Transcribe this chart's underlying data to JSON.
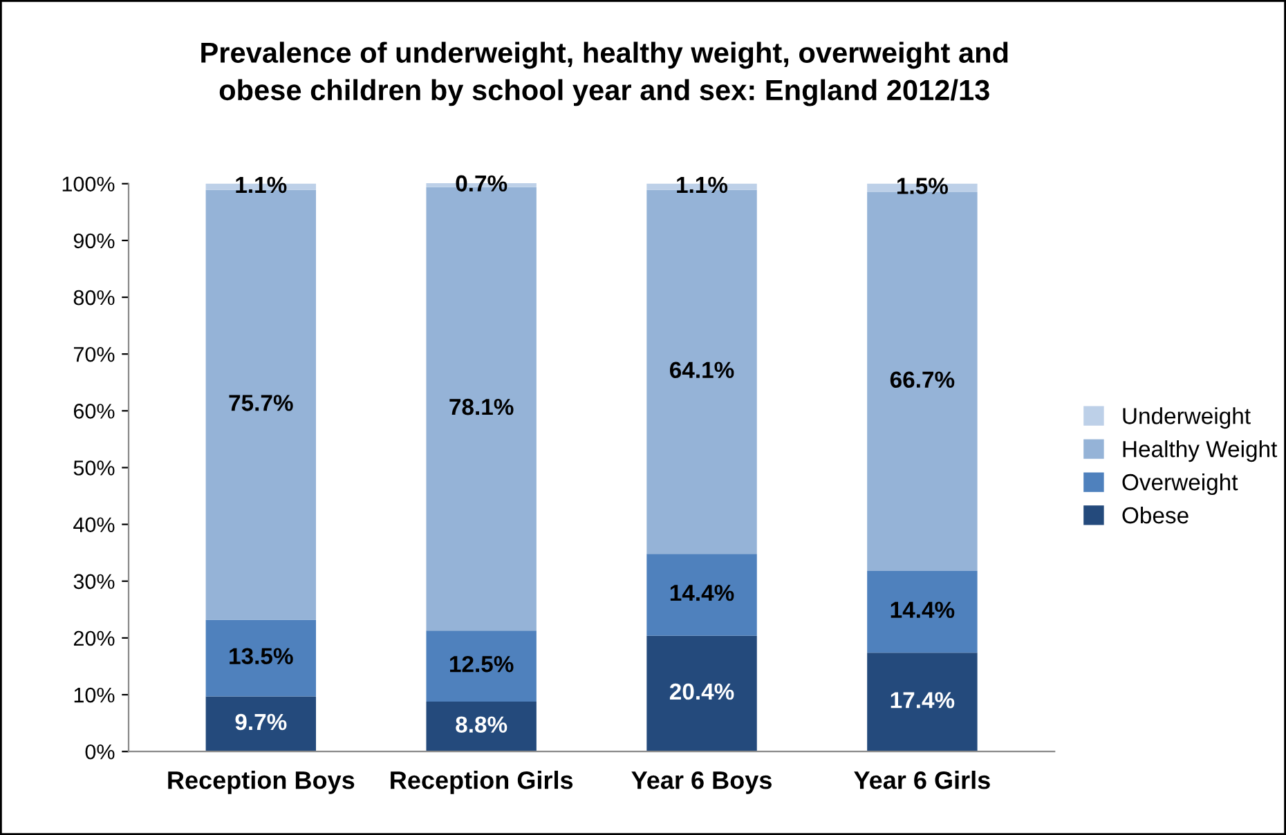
{
  "chart_data": {
    "type": "bar",
    "stacked": true,
    "title": "Prevalence of underweight, healthy weight, overweight and\nobese children by school year and sex: England 2012/13",
    "categories": [
      "Reception Boys",
      "Reception Girls",
      "Year 6 Boys",
      "Year 6 Girls"
    ],
    "series": [
      {
        "name": "Obese",
        "color": "#244a7c",
        "values": [
          9.7,
          8.8,
          20.4,
          17.4
        ],
        "value_labels": [
          "9.7%",
          "8.8%",
          "20.4%",
          "17.4%"
        ]
      },
      {
        "name": "Overweight",
        "color": "#4f81bd",
        "values": [
          13.5,
          12.5,
          14.4,
          14.4
        ],
        "value_labels": [
          "13.5%",
          "12.5%",
          "14.4%",
          "14.4%"
        ]
      },
      {
        "name": "Healthy Weight",
        "color": "#95b3d7",
        "values": [
          75.7,
          78.1,
          64.1,
          66.7
        ],
        "value_labels": [
          "75.7%",
          "78.1%",
          "64.1%",
          "66.7%"
        ]
      },
      {
        "name": "Underweight",
        "color": "#bdd0e8",
        "values": [
          1.1,
          0.7,
          1.1,
          1.5
        ],
        "value_labels": [
          "1.1%",
          "0.7%",
          "1.1%",
          "1.5%"
        ]
      }
    ],
    "ylim": [
      0,
      100
    ],
    "yticks": [
      {
        "value": 0,
        "label": "0%"
      },
      {
        "value": 10,
        "label": "10%"
      },
      {
        "value": 20,
        "label": "20%"
      },
      {
        "value": 30,
        "label": "30%"
      },
      {
        "value": 40,
        "label": "40%"
      },
      {
        "value": 50,
        "label": "50%"
      },
      {
        "value": 60,
        "label": "60%"
      },
      {
        "value": 70,
        "label": "70%"
      },
      {
        "value": 80,
        "label": "80%"
      },
      {
        "value": 90,
        "label": "90%"
      },
      {
        "value": 100,
        "label": "100%"
      }
    ],
    "grid": false,
    "legend": "right"
  }
}
